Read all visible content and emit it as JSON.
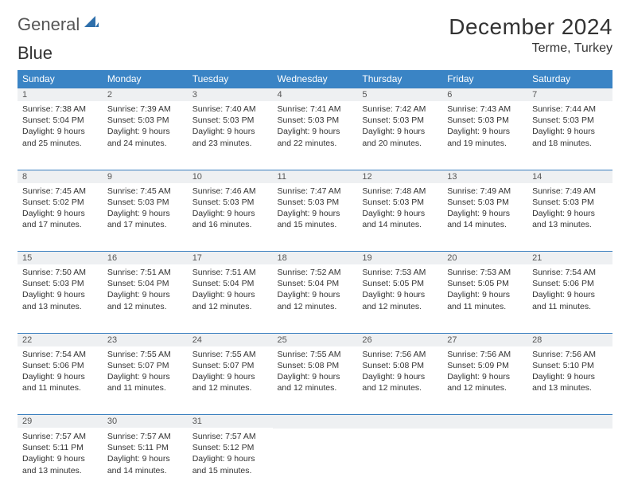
{
  "logo": {
    "text1": "General",
    "text2": "Blue"
  },
  "title": "December 2024",
  "location": "Terme, Turkey",
  "colors": {
    "header_bg": "#3a84c5",
    "header_text": "#ffffff",
    "border": "#3a7fbf",
    "daynum_bg": "#eef0f2",
    "text": "#333333",
    "logo_gray": "#555555",
    "logo_blue": "#3a7fbf"
  },
  "columns": [
    "Sunday",
    "Monday",
    "Tuesday",
    "Wednesday",
    "Thursday",
    "Friday",
    "Saturday"
  ],
  "weeks": [
    [
      {
        "n": "1",
        "sr": "7:38 AM",
        "ss": "5:04 PM",
        "dl": "9 hours and 25 minutes."
      },
      {
        "n": "2",
        "sr": "7:39 AM",
        "ss": "5:03 PM",
        "dl": "9 hours and 24 minutes."
      },
      {
        "n": "3",
        "sr": "7:40 AM",
        "ss": "5:03 PM",
        "dl": "9 hours and 23 minutes."
      },
      {
        "n": "4",
        "sr": "7:41 AM",
        "ss": "5:03 PM",
        "dl": "9 hours and 22 minutes."
      },
      {
        "n": "5",
        "sr": "7:42 AM",
        "ss": "5:03 PM",
        "dl": "9 hours and 20 minutes."
      },
      {
        "n": "6",
        "sr": "7:43 AM",
        "ss": "5:03 PM",
        "dl": "9 hours and 19 minutes."
      },
      {
        "n": "7",
        "sr": "7:44 AM",
        "ss": "5:03 PM",
        "dl": "9 hours and 18 minutes."
      }
    ],
    [
      {
        "n": "8",
        "sr": "7:45 AM",
        "ss": "5:02 PM",
        "dl": "9 hours and 17 minutes."
      },
      {
        "n": "9",
        "sr": "7:45 AM",
        "ss": "5:03 PM",
        "dl": "9 hours and 17 minutes."
      },
      {
        "n": "10",
        "sr": "7:46 AM",
        "ss": "5:03 PM",
        "dl": "9 hours and 16 minutes."
      },
      {
        "n": "11",
        "sr": "7:47 AM",
        "ss": "5:03 PM",
        "dl": "9 hours and 15 minutes."
      },
      {
        "n": "12",
        "sr": "7:48 AM",
        "ss": "5:03 PM",
        "dl": "9 hours and 14 minutes."
      },
      {
        "n": "13",
        "sr": "7:49 AM",
        "ss": "5:03 PM",
        "dl": "9 hours and 14 minutes."
      },
      {
        "n": "14",
        "sr": "7:49 AM",
        "ss": "5:03 PM",
        "dl": "9 hours and 13 minutes."
      }
    ],
    [
      {
        "n": "15",
        "sr": "7:50 AM",
        "ss": "5:03 PM",
        "dl": "9 hours and 13 minutes."
      },
      {
        "n": "16",
        "sr": "7:51 AM",
        "ss": "5:04 PM",
        "dl": "9 hours and 12 minutes."
      },
      {
        "n": "17",
        "sr": "7:51 AM",
        "ss": "5:04 PM",
        "dl": "9 hours and 12 minutes."
      },
      {
        "n": "18",
        "sr": "7:52 AM",
        "ss": "5:04 PM",
        "dl": "9 hours and 12 minutes."
      },
      {
        "n": "19",
        "sr": "7:53 AM",
        "ss": "5:05 PM",
        "dl": "9 hours and 12 minutes."
      },
      {
        "n": "20",
        "sr": "7:53 AM",
        "ss": "5:05 PM",
        "dl": "9 hours and 11 minutes."
      },
      {
        "n": "21",
        "sr": "7:54 AM",
        "ss": "5:06 PM",
        "dl": "9 hours and 11 minutes."
      }
    ],
    [
      {
        "n": "22",
        "sr": "7:54 AM",
        "ss": "5:06 PM",
        "dl": "9 hours and 11 minutes."
      },
      {
        "n": "23",
        "sr": "7:55 AM",
        "ss": "5:07 PM",
        "dl": "9 hours and 11 minutes."
      },
      {
        "n": "24",
        "sr": "7:55 AM",
        "ss": "5:07 PM",
        "dl": "9 hours and 12 minutes."
      },
      {
        "n": "25",
        "sr": "7:55 AM",
        "ss": "5:08 PM",
        "dl": "9 hours and 12 minutes."
      },
      {
        "n": "26",
        "sr": "7:56 AM",
        "ss": "5:08 PM",
        "dl": "9 hours and 12 minutes."
      },
      {
        "n": "27",
        "sr": "7:56 AM",
        "ss": "5:09 PM",
        "dl": "9 hours and 12 minutes."
      },
      {
        "n": "28",
        "sr": "7:56 AM",
        "ss": "5:10 PM",
        "dl": "9 hours and 13 minutes."
      }
    ],
    [
      {
        "n": "29",
        "sr": "7:57 AM",
        "ss": "5:11 PM",
        "dl": "9 hours and 13 minutes."
      },
      {
        "n": "30",
        "sr": "7:57 AM",
        "ss": "5:11 PM",
        "dl": "9 hours and 14 minutes."
      },
      {
        "n": "31",
        "sr": "7:57 AM",
        "ss": "5:12 PM",
        "dl": "9 hours and 15 minutes."
      },
      null,
      null,
      null,
      null
    ]
  ],
  "labels": {
    "sunrise": "Sunrise:",
    "sunset": "Sunset:",
    "daylight": "Daylight:"
  }
}
